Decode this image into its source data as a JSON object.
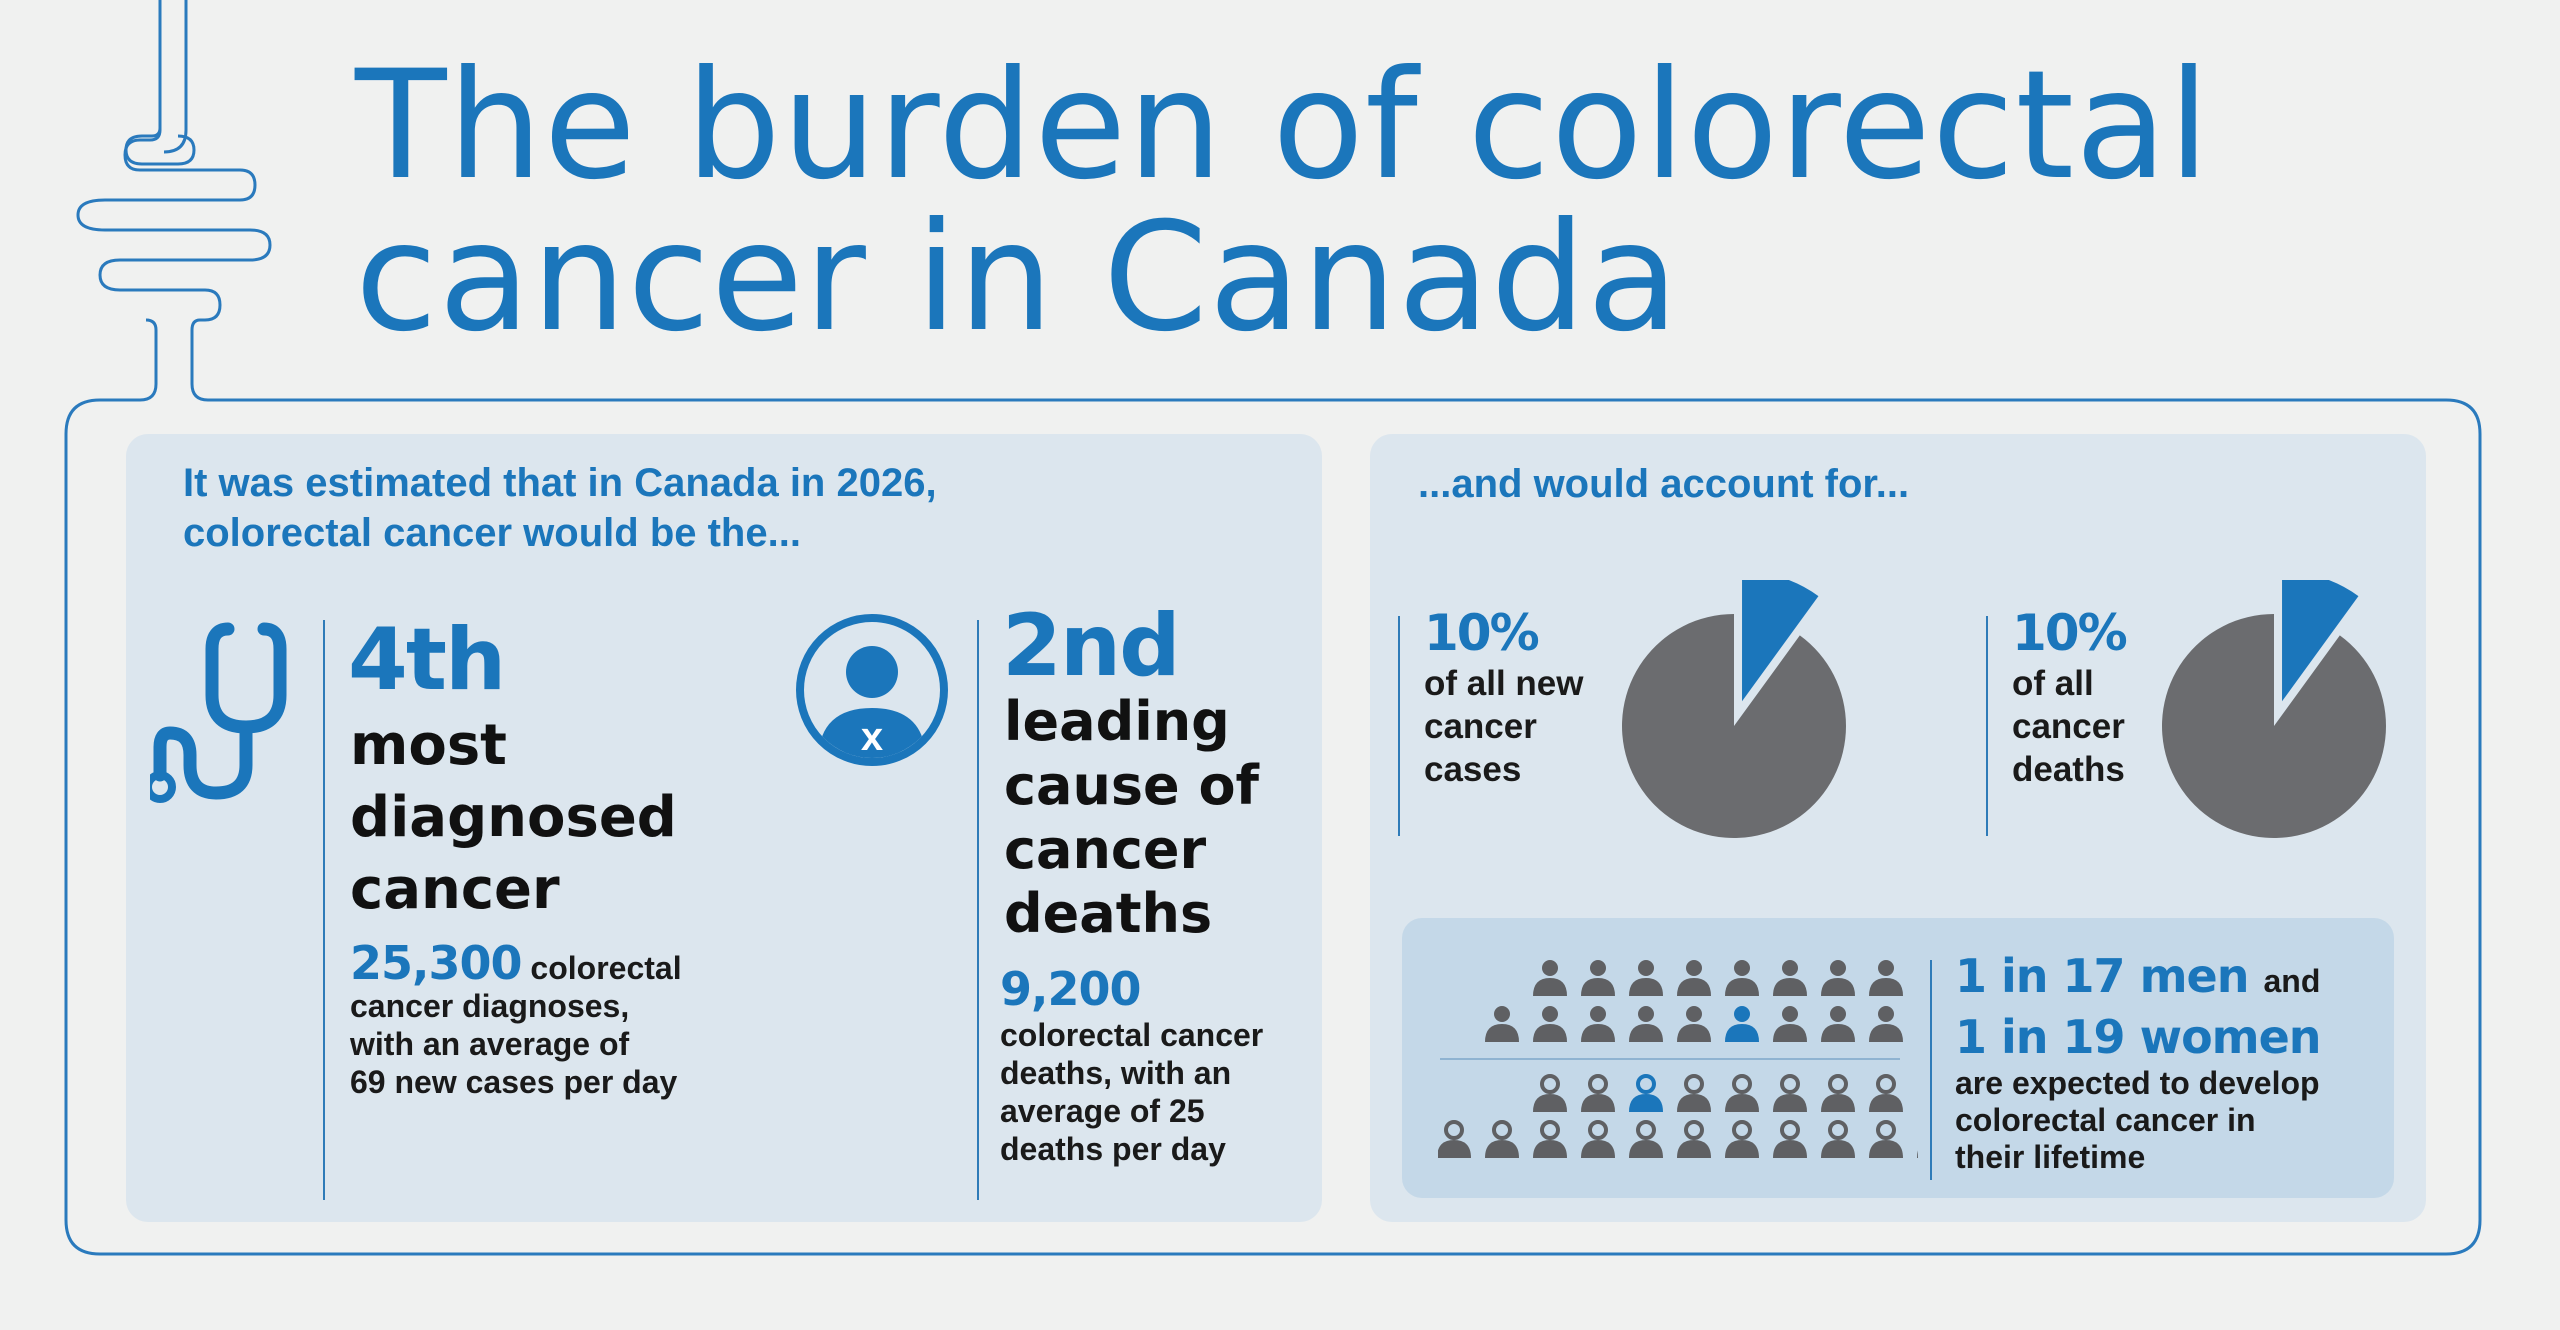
{
  "title": {
    "line1": "The burden of colorectal",
    "line2": "cancer in Canada"
  },
  "left_panel": {
    "intro_line1": "It was estimated that in Canada in 2026,",
    "intro_line2": "colorectal cancer would be the...",
    "diagnosed": {
      "rank": "4th",
      "label": [
        "most",
        "diagnosed",
        "cancer"
      ],
      "count": "25,300",
      "detail_line1": "colorectal",
      "detail_line2": "cancer diagnoses,",
      "detail_line3": "with an average of",
      "detail_line4": "69 new cases per day"
    },
    "deaths": {
      "rank": "2nd",
      "label": [
        "leading",
        "cause of",
        "cancer",
        "deaths"
      ],
      "count": "9,200",
      "detail": [
        "colorectal cancer",
        "deaths, with an",
        "average of 25",
        "deaths per day"
      ]
    }
  },
  "right_panel": {
    "intro": "...and would account for...",
    "stats": [
      {
        "pct": "10%",
        "lines": [
          "of all new",
          "cancer",
          "cases"
        ],
        "share": 0.1
      },
      {
        "pct": "10%",
        "lines": [
          "of all",
          "cancer",
          "deaths"
        ],
        "share": 0.1
      }
    ],
    "risk": {
      "men": "1 in 17 men",
      "and": "and",
      "women": "1 in 19 women",
      "lines": [
        "are expected to develop",
        "colorectal cancer in",
        "their lifetime"
      ]
    }
  },
  "icons": [
    "intestine-icon",
    "stethoscope-icon",
    "person-x-icon",
    "man-icon",
    "woman-icon"
  ],
  "colors": {
    "accent": "#1b76bb",
    "pie_gray": "#6b6c6f",
    "panel": "#dce6ee",
    "inner": "#c4d8e8",
    "background": "#f0f1f0"
  }
}
